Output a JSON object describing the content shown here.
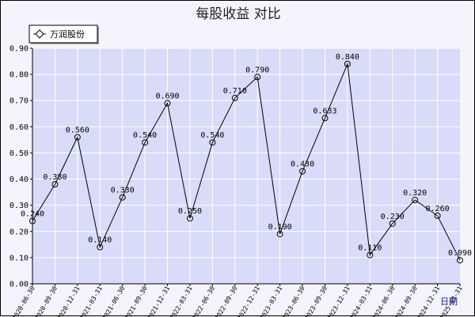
{
  "chart_data": {
    "type": "line",
    "title": "每股收益  对比",
    "xlabel": "日期",
    "ylabel": "",
    "ylim": [
      0,
      0.9
    ],
    "yticks": [
      "0.00",
      "0.10",
      "0.20",
      "0.30",
      "0.40",
      "0.50",
      "0.60",
      "0.70",
      "0.80",
      "0.90"
    ],
    "grid": true,
    "legend_position": "top-left",
    "colors": {
      "plot_bg": "#d8dcf8",
      "grid": "#ffffff",
      "line": "#000000",
      "page_bg": "#f4f4fc"
    },
    "categories": [
      "2020-06-30",
      "2020-09-30",
      "2020-12-31",
      "2021-03-31",
      "2021-06-30",
      "2021-09-30",
      "2021-12-31",
      "2022-03-31",
      "2022-06-30",
      "2022-09-30",
      "2022-12-31",
      "2023-03-31",
      "2023-06-30",
      "2023-09-30",
      "2023-12-31",
      "2024-03-31",
      "2024-06-30",
      "2024-09-30",
      "2024-12-31",
      "2025-03-31"
    ],
    "series": [
      {
        "name": "万润股份",
        "values": [
          0.24,
          0.38,
          0.56,
          0.14,
          0.33,
          0.54,
          0.69,
          0.25,
          0.54,
          0.71,
          0.79,
          0.19,
          0.43,
          0.633,
          0.84,
          0.11,
          0.23,
          0.32,
          0.26,
          0.09
        ],
        "labels": [
          "0.240",
          "0.380",
          "0.560",
          "0.140",
          "0.330",
          "0.540",
          "0.690",
          "0.250",
          "0.540",
          "0.710",
          "0.790",
          "0.190",
          "0.430",
          "0.633",
          "0.840",
          "0.110",
          "0.230",
          "0.320",
          "0.260",
          "0.090"
        ]
      }
    ]
  }
}
